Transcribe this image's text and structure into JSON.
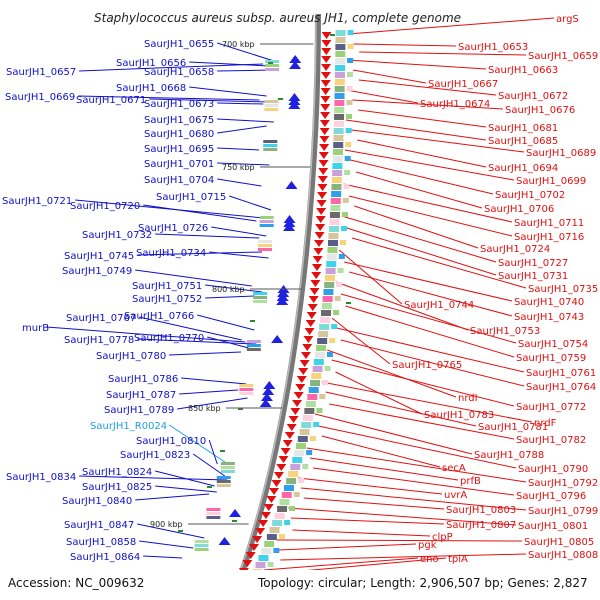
{
  "title": "Staphylococcus aureus subsp. aureus JH1, complete genome",
  "footer": {
    "accession": "Accession: NC_009632",
    "summary": "Topology: circular; Length: 2,906,507 bp; Genes: 2,827"
  },
  "kbp_markers": [
    {
      "label": "700 kbp"
    },
    {
      "label": "750 kbp"
    },
    {
      "label": "800 kbp"
    },
    {
      "label": "850 kbp"
    },
    {
      "label": "900 kbp"
    }
  ],
  "colors": {
    "left_labels": "#1010c8",
    "right_labels": "#e01010",
    "rna_label": "#20a0e0",
    "backbone": "#777777",
    "forward_arrows": "#2020e0",
    "reverse_arrows": "#e01010",
    "small_marks": "#2a8a2a"
  },
  "left_labels": [
    "SaurJH1_0655",
    "SaurJH1_0656",
    "SaurJH1_0657",
    "SaurJH1_0658",
    "SaurJH1_0668",
    "SaurJH1_0669",
    "SaurJH1_0671",
    "SaurJH1_0673",
    "SaurJH1_0675",
    "SaurJH1_0680",
    "SaurJH1_0695",
    "SaurJH1_0701",
    "SaurJH1_0704",
    "SaurJH1_0715",
    "SaurJH1_0721",
    "SaurJH1_0720",
    "SaurJH1_0726",
    "SaurJH1_0732",
    "SaurJH1_0734",
    "SaurJH1_0745",
    "SaurJH1_0749",
    "SaurJH1_0751",
    "SaurJH1_0752",
    "SaurJH1_0767",
    "SaurJH1_0766",
    "murB",
    "SaurJH1_0778",
    "SaurJH1_0770",
    "SaurJH1_0780",
    "SaurJH1_0786",
    "SaurJH1_0787",
    "SaurJH1_0789",
    "SaurJH1_R0024",
    "SaurJH1_0810",
    "SaurJH1_0823",
    "SaurJH1_0824",
    "SaurJH1_0834",
    "SaurJH1_0825",
    "SaurJH1_0840",
    "SaurJH1_0847",
    "SaurJH1_0858",
    "SaurJH1_0864"
  ],
  "right_labels": [
    "argS",
    "SaurJH1_0653",
    "SaurJH1_0659",
    "SaurJH1_0663",
    "SaurJH1_0667",
    "SaurJH1_0672",
    "SaurJH1_0674",
    "SaurJH1_0676",
    "SaurJH1_0681",
    "SaurJH1_0685",
    "SaurJH1_0689",
    "SaurJH1_0694",
    "SaurJH1_0699",
    "SaurJH1_0702",
    "SaurJH1_0706",
    "SaurJH1_0711",
    "SaurJH1_0716",
    "SaurJH1_0724",
    "SaurJH1_0727",
    "SaurJH1_0731",
    "SaurJH1_0735",
    "SaurJH1_0744",
    "SaurJH1_0740",
    "SaurJH1_0743",
    "SaurJH1_0753",
    "SaurJH1_0754",
    "SaurJH1_0759",
    "SaurJH1_0765",
    "SaurJH1_0761",
    "SaurJH1_0764",
    "nrdI",
    "SaurJH1_0772",
    "SaurJH1_0783",
    "nrdF",
    "SaurJH1_0781",
    "SaurJH1_0782",
    "SaurJH1_0788",
    "SaurJH1_0790",
    "secA",
    "SaurJH1_0792",
    "prfB",
    "SaurJH1_0796",
    "uvrA",
    "SaurJH1_0799",
    "SaurJH1_0803",
    "SaurJH1_0801",
    "SaurJH1_0807",
    "clpP",
    "SaurJH1_0805",
    "pgk",
    "SaurJH1_0808",
    "eno",
    "tpiA"
  ]
}
